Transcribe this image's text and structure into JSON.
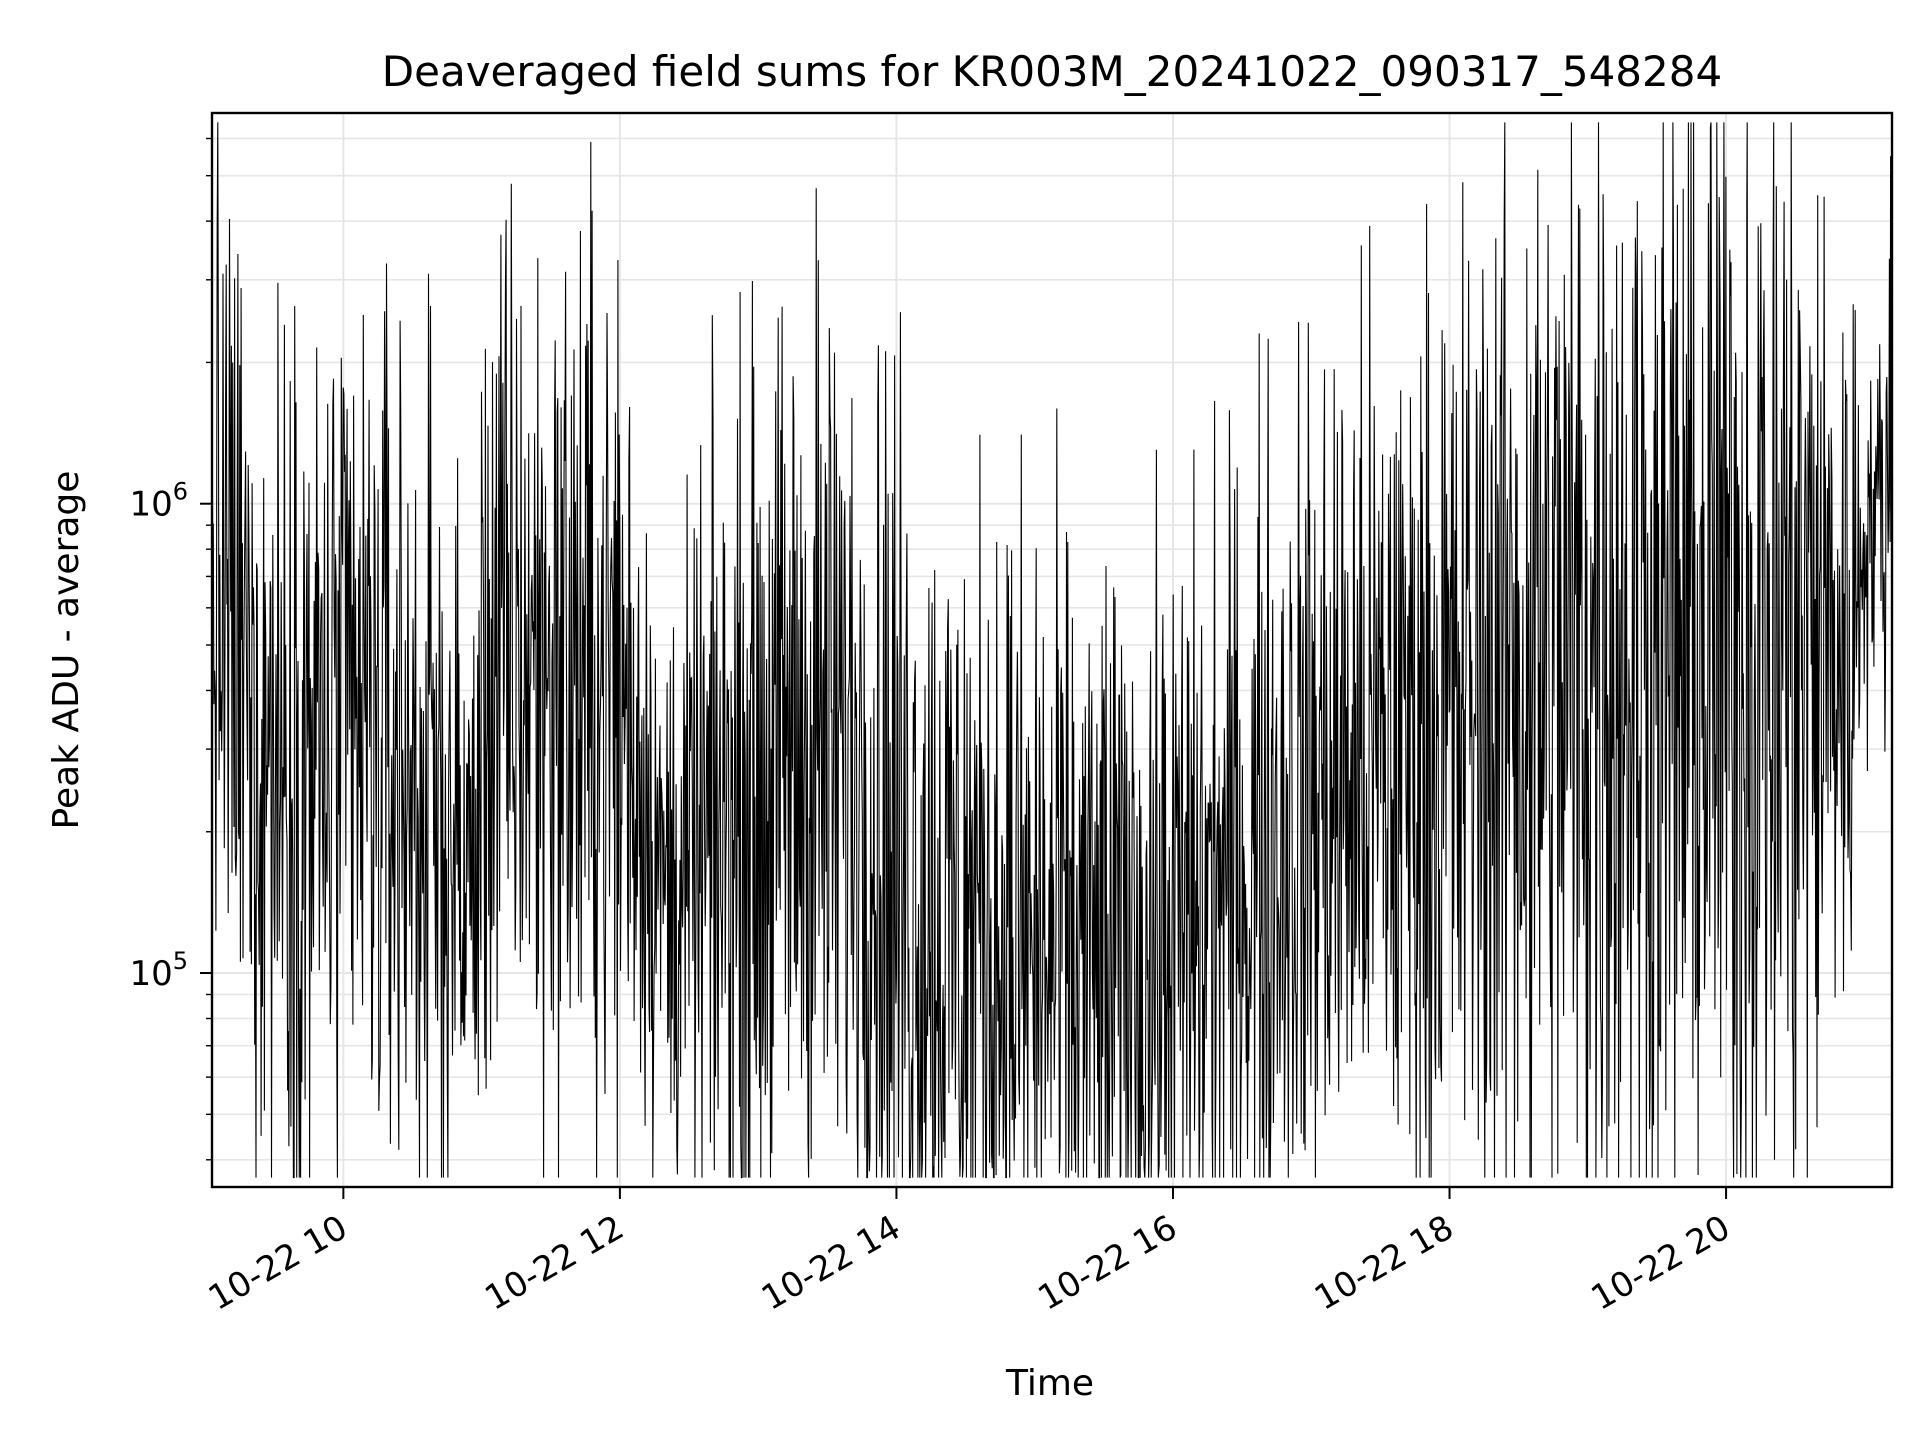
{
  "chart_data": {
    "type": "line",
    "title": "Deaveraged field sums for KR003M_20241022_090317_548284",
    "xlabel": "Time",
    "ylabel": "Peak ADU - average",
    "yscale": "log",
    "xlim": [
      9.05,
      21.2
    ],
    "ylim": [
      35000,
      6800000
    ],
    "grid": true,
    "line_color": "#000000",
    "grid_color": "#e6e6e6",
    "x_ticks": [
      {
        "value": 10,
        "label": "10-22 10"
      },
      {
        "value": 12,
        "label": "10-22 12"
      },
      {
        "value": 14,
        "label": "10-22 14"
      },
      {
        "value": 16,
        "label": "10-22 16"
      },
      {
        "value": 18,
        "label": "10-22 18"
      },
      {
        "value": 20,
        "label": "10-22 20"
      }
    ],
    "y_ticks": [
      {
        "value": 100000,
        "base": "10",
        "exp": "5"
      },
      {
        "value": 1000000,
        "base": "10",
        "exp": "6"
      }
    ],
    "series": [
      {
        "name": "deaveraged field sum",
        "x_start": 9.05,
        "x_end": 21.2,
        "profile_hours": [
          9.05,
          9.3,
          9.5,
          9.8,
          10.1,
          10.4,
          10.7,
          10.95,
          11.05,
          11.5,
          12.0,
          12.3,
          12.5,
          12.9,
          13.3,
          13.7,
          14.0,
          14.3,
          14.7,
          15.0,
          15.5,
          16.0,
          16.5,
          17.0,
          17.5,
          18.0,
          18.5,
          19.0,
          19.5,
          20.0,
          20.5,
          20.8,
          20.9,
          21.0,
          21.2
        ],
        "profile_center": [
          700000,
          380000,
          300000,
          280000,
          320000,
          280000,
          200000,
          150000,
          450000,
          450000,
          400000,
          150000,
          160000,
          220000,
          300000,
          280000,
          170000,
          130000,
          120000,
          110000,
          100000,
          110000,
          160000,
          240000,
          280000,
          320000,
          420000,
          480000,
          450000,
          520000,
          460000,
          500000,
          450000,
          900000,
          1000000
        ],
        "profile_spread": [
          0.55,
          0.6,
          0.6,
          0.6,
          0.6,
          0.6,
          0.55,
          0.4,
          0.6,
          0.6,
          0.6,
          0.35,
          0.45,
          0.6,
          0.6,
          0.6,
          0.7,
          0.6,
          0.6,
          0.55,
          0.55,
          0.55,
          0.55,
          0.6,
          0.6,
          0.65,
          0.75,
          0.8,
          0.8,
          0.85,
          0.85,
          0.6,
          0.5,
          0.25,
          0.3
        ],
        "spikes": [
          {
            "x": 13.42,
            "y": 4700000
          },
          {
            "x": 21.19,
            "y": 5500000
          },
          {
            "x": 19.95,
            "y": 4500000
          },
          {
            "x": 20.15,
            "y": 4300000
          },
          {
            "x": 20.42,
            "y": 4400000
          },
          {
            "x": 19.25,
            "y": 3600000
          },
          {
            "x": 15.9,
            "y": 39000
          },
          {
            "x": 20.35,
            "y": 40000
          }
        ]
      }
    ]
  }
}
